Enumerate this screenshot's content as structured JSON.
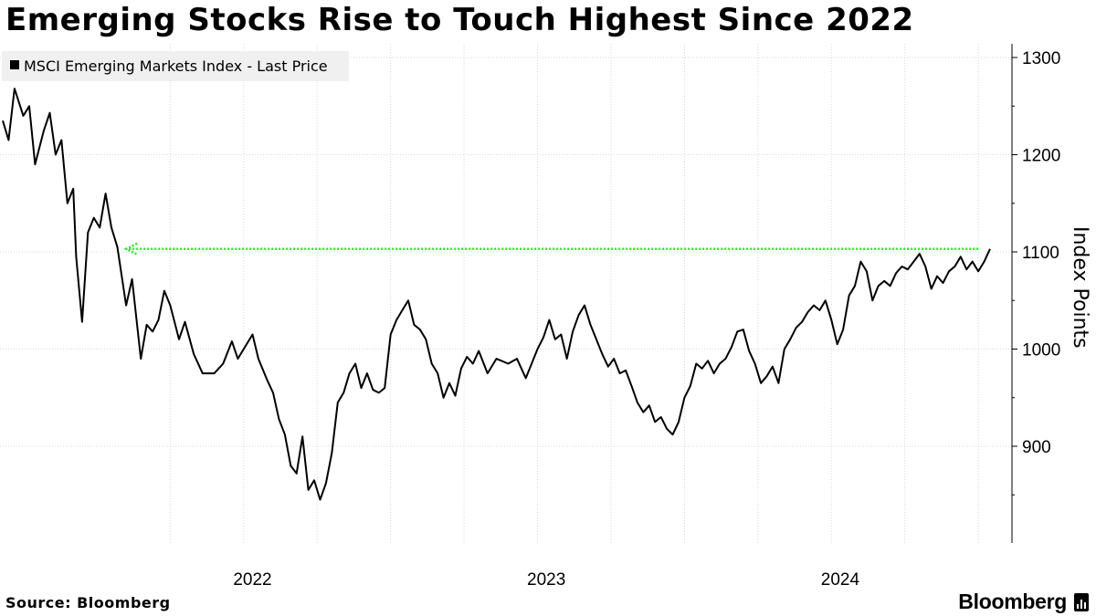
{
  "title": "Emerging Stocks Rise to Touch Highest Since 2022",
  "source": "Source: Bloomberg",
  "brand": "Bloomberg",
  "colors": {
    "line": "#000000",
    "highlight": "#2ee82e",
    "grid": "#d9d9d9",
    "legend_bg": "#f0f0f0"
  },
  "chart_data": {
    "type": "line",
    "title": "Emerging Stocks Rise to Touch Highest Since 2022",
    "ylabel": "Index Points",
    "xlabel": "",
    "ylim": [
      800,
      1310
    ],
    "yticks": [
      900,
      1000,
      1100,
      1200,
      1300
    ],
    "x_range": [
      2021.18,
      2024.54
    ],
    "x_tick_labels": [
      {
        "label": "2022",
        "x": 2022.0
      },
      {
        "label": "2023",
        "x": 2023.0
      },
      {
        "label": "2024",
        "x": 2024.0
      }
    ],
    "legend": {
      "placement": "top-left",
      "entries": [
        "MSCI Emerging Markets Index - Last Price"
      ]
    },
    "annotations": [
      {
        "type": "horizontal-dotted-arrow",
        "y": 1103,
        "x_start": 2024.5,
        "x_end": 2021.6,
        "label": ""
      }
    ],
    "series": [
      {
        "name": "MSCI Emerging Markets Index - Last Price",
        "points": [
          [
            2021.18,
            1235
          ],
          [
            2021.2,
            1215
          ],
          [
            2021.22,
            1268
          ],
          [
            2021.25,
            1240
          ],
          [
            2021.27,
            1250
          ],
          [
            2021.29,
            1190
          ],
          [
            2021.32,
            1225
          ],
          [
            2021.34,
            1243
          ],
          [
            2021.36,
            1200
          ],
          [
            2021.38,
            1215
          ],
          [
            2021.4,
            1150
          ],
          [
            2021.42,
            1165
          ],
          [
            2021.43,
            1095
          ],
          [
            2021.45,
            1028
          ],
          [
            2021.47,
            1120
          ],
          [
            2021.49,
            1135
          ],
          [
            2021.51,
            1125
          ],
          [
            2021.53,
            1160
          ],
          [
            2021.55,
            1125
          ],
          [
            2021.57,
            1105
          ],
          [
            2021.6,
            1045
          ],
          [
            2021.62,
            1072
          ],
          [
            2021.65,
            990
          ],
          [
            2021.67,
            1025
          ],
          [
            2021.69,
            1018
          ],
          [
            2021.71,
            1030
          ],
          [
            2021.73,
            1060
          ],
          [
            2021.75,
            1045
          ],
          [
            2021.78,
            1010
          ],
          [
            2021.8,
            1028
          ],
          [
            2021.83,
            995
          ],
          [
            2021.86,
            975
          ],
          [
            2021.9,
            975
          ],
          [
            2021.93,
            985
          ],
          [
            2021.96,
            1008
          ],
          [
            2021.98,
            990
          ],
          [
            2022.0,
            1000
          ],
          [
            2022.03,
            1015
          ],
          [
            2022.05,
            990
          ],
          [
            2022.08,
            968
          ],
          [
            2022.1,
            955
          ],
          [
            2022.12,
            928
          ],
          [
            2022.14,
            912
          ],
          [
            2022.16,
            880
          ],
          [
            2022.18,
            872
          ],
          [
            2022.2,
            910
          ],
          [
            2022.22,
            855
          ],
          [
            2022.24,
            865
          ],
          [
            2022.26,
            845
          ],
          [
            2022.28,
            862
          ],
          [
            2022.3,
            893
          ],
          [
            2022.32,
            945
          ],
          [
            2022.34,
            955
          ],
          [
            2022.36,
            975
          ],
          [
            2022.38,
            985
          ],
          [
            2022.4,
            960
          ],
          [
            2022.42,
            975
          ],
          [
            2022.44,
            958
          ],
          [
            2022.46,
            955
          ],
          [
            2022.48,
            960
          ],
          [
            2022.5,
            1015
          ],
          [
            2022.52,
            1030
          ],
          [
            2022.54,
            1040
          ],
          [
            2022.56,
            1050
          ],
          [
            2022.58,
            1025
          ],
          [
            2022.6,
            1020
          ],
          [
            2022.62,
            1010
          ],
          [
            2022.64,
            985
          ],
          [
            2022.66,
            975
          ],
          [
            2022.68,
            950
          ],
          [
            2022.7,
            965
          ],
          [
            2022.72,
            952
          ],
          [
            2022.74,
            980
          ],
          [
            2022.76,
            992
          ],
          [
            2022.78,
            985
          ],
          [
            2022.8,
            998
          ],
          [
            2022.83,
            975
          ],
          [
            2022.86,
            990
          ],
          [
            2022.9,
            985
          ],
          [
            2022.93,
            990
          ],
          [
            2022.96,
            970
          ],
          [
            2022.98,
            985
          ],
          [
            2023.0,
            1000
          ],
          [
            2023.02,
            1012
          ],
          [
            2023.04,
            1030
          ],
          [
            2023.06,
            1010
          ],
          [
            2023.08,
            1015
          ],
          [
            2023.1,
            990
          ],
          [
            2023.12,
            1018
          ],
          [
            2023.14,
            1035
          ],
          [
            2023.16,
            1045
          ],
          [
            2023.18,
            1025
          ],
          [
            2023.2,
            1010
          ],
          [
            2023.22,
            995
          ],
          [
            2023.24,
            982
          ],
          [
            2023.26,
            990
          ],
          [
            2023.28,
            975
          ],
          [
            2023.3,
            978
          ],
          [
            2023.32,
            962
          ],
          [
            2023.34,
            945
          ],
          [
            2023.36,
            935
          ],
          [
            2023.38,
            942
          ],
          [
            2023.4,
            925
          ],
          [
            2023.42,
            930
          ],
          [
            2023.44,
            918
          ],
          [
            2023.46,
            912
          ],
          [
            2023.48,
            925
          ],
          [
            2023.5,
            950
          ],
          [
            2023.52,
            962
          ],
          [
            2023.54,
            985
          ],
          [
            2023.56,
            980
          ],
          [
            2023.58,
            988
          ],
          [
            2023.6,
            975
          ],
          [
            2023.62,
            985
          ],
          [
            2023.64,
            990
          ],
          [
            2023.66,
            1002
          ],
          [
            2023.68,
            1018
          ],
          [
            2023.7,
            1020
          ],
          [
            2023.72,
            998
          ],
          [
            2023.74,
            985
          ],
          [
            2023.76,
            965
          ],
          [
            2023.78,
            972
          ],
          [
            2023.8,
            982
          ],
          [
            2023.82,
            965
          ],
          [
            2023.84,
            1000
          ],
          [
            2023.86,
            1010
          ],
          [
            2023.88,
            1022
          ],
          [
            2023.9,
            1028
          ],
          [
            2023.92,
            1038
          ],
          [
            2023.94,
            1045
          ],
          [
            2023.96,
            1040
          ],
          [
            2023.98,
            1050
          ],
          [
            2024.0,
            1030
          ],
          [
            2024.02,
            1005
          ],
          [
            2024.04,
            1020
          ],
          [
            2024.06,
            1055
          ],
          [
            2024.08,
            1065
          ],
          [
            2024.1,
            1090
          ],
          [
            2024.12,
            1080
          ],
          [
            2024.14,
            1050
          ],
          [
            2024.16,
            1065
          ],
          [
            2024.18,
            1070
          ],
          [
            2024.2,
            1065
          ],
          [
            2024.22,
            1078
          ],
          [
            2024.24,
            1085
          ],
          [
            2024.26,
            1082
          ],
          [
            2024.28,
            1090
          ],
          [
            2024.3,
            1098
          ],
          [
            2024.32,
            1085
          ],
          [
            2024.34,
            1062
          ],
          [
            2024.36,
            1075
          ],
          [
            2024.38,
            1068
          ],
          [
            2024.4,
            1080
          ],
          [
            2024.42,
            1085
          ],
          [
            2024.44,
            1095
          ],
          [
            2024.46,
            1082
          ],
          [
            2024.48,
            1090
          ],
          [
            2024.5,
            1080
          ],
          [
            2024.52,
            1090
          ],
          [
            2024.54,
            1103
          ]
        ]
      }
    ]
  }
}
